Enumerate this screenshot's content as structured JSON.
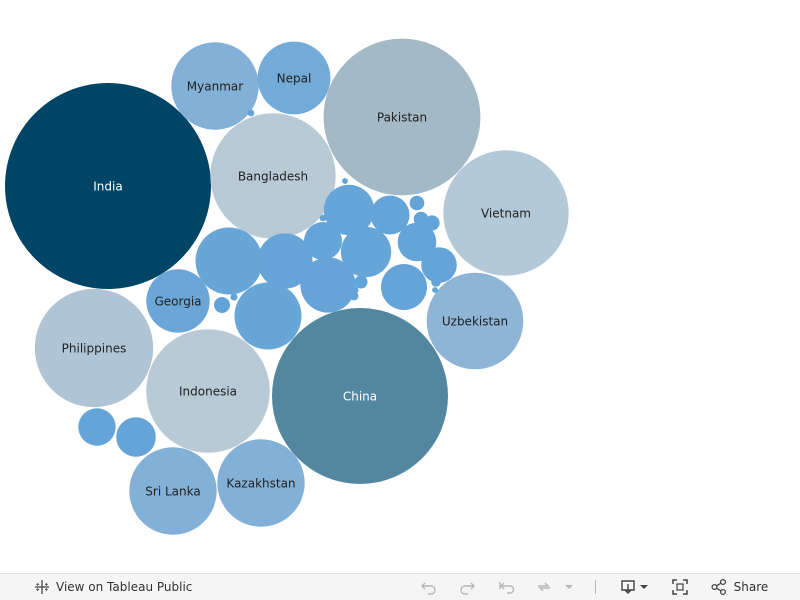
{
  "chart_data": {
    "type": "packed-bubble",
    "title": "",
    "bubbles": [
      {
        "label": "India",
        "size": 100,
        "color": "#004466",
        "text_color": "#ffffff"
      },
      {
        "label": "China",
        "size": 73,
        "color": "#53869f",
        "text_color": "#ffffff"
      },
      {
        "label": "Pakistan",
        "size": 58,
        "color": "#a3b9c5",
        "text_color": "#222222"
      },
      {
        "label": "Bangladesh",
        "size": 37,
        "color": "#b9cad7",
        "text_color": "#222222"
      },
      {
        "label": "Indonesia",
        "size": 36,
        "color": "#b9cad7",
        "text_color": "#222222"
      },
      {
        "label": "Vietnam",
        "size": 37,
        "color": "#b3c9d8",
        "text_color": "#222222"
      },
      {
        "label": "Philippines",
        "size": 33,
        "color": "#afc5d6",
        "text_color": "#222222"
      },
      {
        "label": "Uzbekistan",
        "size": 22,
        "color": "#8eb5d6",
        "text_color": "#222222"
      },
      {
        "label": "Sri Lanka",
        "size": 18,
        "color": "#83b0d7",
        "text_color": "#222222"
      },
      {
        "label": "Kazakhstan",
        "size": 18,
        "color": "#83b0d7",
        "text_color": "#222222"
      },
      {
        "label": "Myanmar",
        "size": 18,
        "color": "#83b0d7",
        "text_color": "#222222"
      },
      {
        "label": "Nepal",
        "size": 12.5,
        "color": "#73abd8",
        "text_color": "#222222"
      },
      {
        "label": "Georgia",
        "size": 9.5,
        "color": "#6aa6d8",
        "text_color": "#222222"
      },
      {
        "label": "",
        "size": 10.6,
        "color": "#69a6d8"
      },
      {
        "label": "",
        "size": 10.6,
        "color": "#69a6d8"
      },
      {
        "label": "",
        "size": 7.2,
        "color": "#67a5d8"
      },
      {
        "label": "",
        "size": 7.2,
        "color": "#67a5d8"
      },
      {
        "label": "",
        "size": 6,
        "color": "#66a5d8"
      },
      {
        "label": "",
        "size": 6,
        "color": "#66a5d8"
      },
      {
        "label": "",
        "size": 5,
        "color": "#64a4d8"
      },
      {
        "label": "",
        "size": 3.4,
        "color": "#64a4d8"
      },
      {
        "label": "",
        "size": 3.6,
        "color": "#64a4d8"
      },
      {
        "label": "",
        "size": 3.5,
        "color": "#64a4d8"
      },
      {
        "label": "",
        "size": 3.7,
        "color": "#64a4d8"
      },
      {
        "label": "",
        "size": 3.3,
        "color": "#64a4d8"
      },
      {
        "label": "",
        "size": 3.0,
        "color": "#64a4d8"
      },
      {
        "label": "",
        "size": 0.6,
        "color": "#62a3d8"
      },
      {
        "label": "",
        "size": 0.5,
        "color": "#62a3d8"
      },
      {
        "label": "",
        "size": 0.5,
        "color": "#62a3d8"
      },
      {
        "label": "",
        "size": 0.55,
        "color": "#62a3d8"
      },
      {
        "label": "",
        "size": 0.4,
        "color": "#62a3d8"
      },
      {
        "label": "",
        "size": 0.22,
        "color": "#62a3d8"
      },
      {
        "label": "",
        "size": 0.18,
        "color": "#62a3d8"
      },
      {
        "label": "",
        "size": 0.12,
        "color": "#62a3d8"
      },
      {
        "label": "",
        "size": 0.12,
        "color": "#62a3d8"
      },
      {
        "label": "",
        "size": 0.1,
        "color": "#62a3d8"
      },
      {
        "label": "",
        "size": 0.1,
        "color": "#62a3d8"
      },
      {
        "label": "",
        "size": 0.08,
        "color": "#62a3d8"
      },
      {
        "label": "",
        "size": 0.08,
        "color": "#62a3d8"
      }
    ]
  },
  "toolbar": {
    "view_label": "View on Tableau Public",
    "share_label": "Share",
    "icons": [
      "tableau-logo-icon",
      "undo-icon",
      "redo-icon",
      "revert-icon",
      "refresh-icon",
      "dropdown-icon",
      "download-icon",
      "fullscreen-icon",
      "share-icon"
    ]
  }
}
